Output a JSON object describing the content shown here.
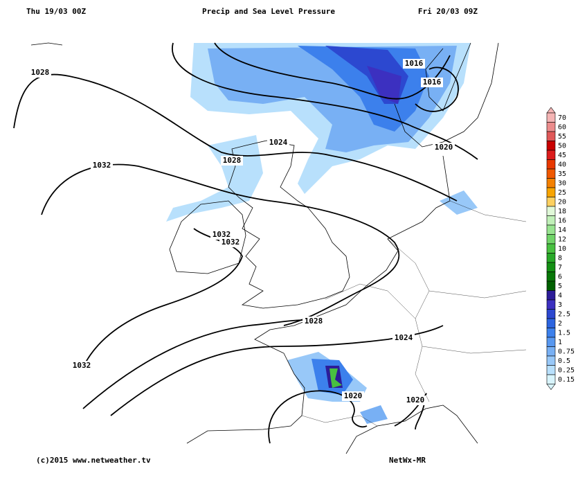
{
  "header": {
    "left": "Thu 19/03 00Z",
    "title": "Precip and Sea Level Pressure",
    "right": "Fri 20/03 09Z"
  },
  "isobar_labels": [
    "1028",
    "1016",
    "1016",
    "1024",
    "1020",
    "1028",
    "1032",
    "1032",
    "1032",
    "1028",
    "1024",
    "1032",
    "1020",
    "1020"
  ],
  "legend": [
    {
      "label": "70",
      "color": "#f4b4b4"
    },
    {
      "label": "60",
      "color": "#ec8c8c"
    },
    {
      "label": "55",
      "color": "#e05858"
    },
    {
      "label": "50",
      "color": "#c80000"
    },
    {
      "label": "45",
      "color": "#dc1c1c"
    },
    {
      "label": "40",
      "color": "#e83800"
    },
    {
      "label": "35",
      "color": "#f05800"
    },
    {
      "label": "30",
      "color": "#f48000"
    },
    {
      "label": "25",
      "color": "#f8a400"
    },
    {
      "label": "20",
      "color": "#fcd060"
    },
    {
      "label": "18",
      "color": "#e0f8d8"
    },
    {
      "label": "16",
      "color": "#c0f0b8"
    },
    {
      "label": "14",
      "color": "#98e490"
    },
    {
      "label": "12",
      "color": "#70d468"
    },
    {
      "label": "10",
      "color": "#48c040"
    },
    {
      "label": "8",
      "color": "#28a828"
    },
    {
      "label": "7",
      "color": "#149014"
    },
    {
      "label": "6",
      "color": "#087808"
    },
    {
      "label": "5",
      "color": "#006000"
    },
    {
      "label": "4",
      "color": "#2c1c98"
    },
    {
      "label": "3",
      "color": "#3c30c0"
    },
    {
      "label": "2.5",
      "color": "#2c48d0"
    },
    {
      "label": "2",
      "color": "#2c64e0"
    },
    {
      "label": "1.5",
      "color": "#3c80ec"
    },
    {
      "label": "1",
      "color": "#5898f0"
    },
    {
      "label": "0.75",
      "color": "#78b0f4"
    },
    {
      "label": "0.5",
      "color": "#98c8f8"
    },
    {
      "label": "0.25",
      "color": "#b8e0fc"
    },
    {
      "label": "0.15",
      "color": "#d8f4fc"
    }
  ],
  "footer": {
    "left": "(c)2015 www.netweather.tv",
    "right": "NetWx-MR"
  }
}
